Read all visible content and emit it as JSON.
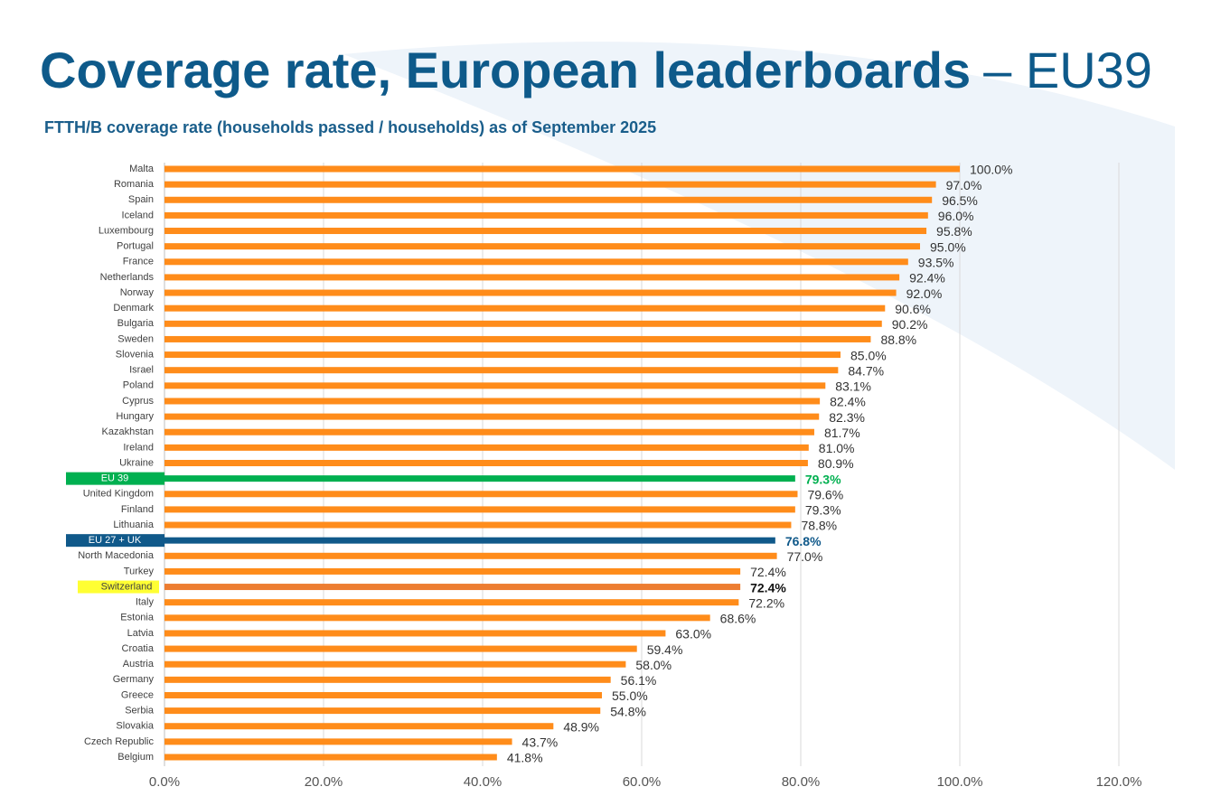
{
  "chart_data": {
    "type": "hbar",
    "title": "Coverage rate, European leaderboards",
    "title_suffix": "– EU39",
    "subtitle": "FTTH/B coverage rate (households passed / households) as of September 2025",
    "categories": [
      "Malta",
      "Romania",
      "Spain",
      "Iceland",
      "Luxembourg",
      "Portugal",
      "France",
      "Netherlands",
      "Norway",
      "Denmark",
      "Bulgaria",
      "Sweden",
      "Slovenia",
      "Israel",
      "Poland",
      "Cyprus",
      "Hungary",
      "Kazakhstan",
      "Ireland",
      "Ukraine",
      "EU 39",
      "United Kingdom",
      "Finland",
      "Lithuania",
      "EU 27 + UK",
      "North Macedonia",
      "Turkey",
      "Switzerland",
      "Italy",
      "Estonia",
      "Latvia",
      "Croatia",
      "Austria",
      "Germany",
      "Greece",
      "Serbia",
      "Slovakia",
      "Czech Republic",
      "Belgium"
    ],
    "values": [
      100.0,
      97.0,
      96.5,
      96.0,
      95.8,
      95.0,
      93.5,
      92.4,
      92.0,
      90.6,
      90.2,
      88.8,
      85.0,
      84.7,
      83.1,
      82.4,
      82.3,
      81.7,
      81.0,
      80.9,
      79.3,
      79.6,
      79.3,
      78.8,
      76.8,
      77.0,
      72.4,
      72.4,
      72.2,
      68.6,
      63.0,
      59.4,
      58.0,
      56.1,
      55.0,
      54.8,
      48.9,
      43.7,
      41.8
    ],
    "value_labels": [
      "100.0%",
      "97.0%",
      "96.5%",
      "96.0%",
      "95.8%",
      "95.0%",
      "93.5%",
      "92.4%",
      "92.0%",
      "90.6%",
      "90.2%",
      "88.8%",
      "85.0%",
      "84.7%",
      "83.1%",
      "82.4%",
      "82.3%",
      "81.7%",
      "81.0%",
      "80.9%",
      "79.3%",
      "79.6%",
      "79.3%",
      "78.8%",
      "76.8%",
      "77.0%",
      "72.4%",
      "72.4%",
      "72.2%",
      "68.6%",
      "63.0%",
      "59.4%",
      "58.0%",
      "56.1%",
      "55.0%",
      "54.8%",
      "48.9%",
      "43.7%",
      "41.8%"
    ],
    "colors": [
      "#ff8c1a",
      "#ff8c1a",
      "#ff8c1a",
      "#ff8c1a",
      "#ff8c1a",
      "#ff8c1a",
      "#ff8c1a",
      "#ff8c1a",
      "#ff8c1a",
      "#ff8c1a",
      "#ff8c1a",
      "#ff8c1a",
      "#ff8c1a",
      "#ff8c1a",
      "#ff8c1a",
      "#ff8c1a",
      "#ff8c1a",
      "#ff8c1a",
      "#ff8c1a",
      "#ff8c1a",
      "#00b050",
      "#ff8c1a",
      "#ff8c1a",
      "#ff8c1a",
      "#10598a",
      "#ff8c1a",
      "#ff8c1a",
      "#ed7d31",
      "#ff8c1a",
      "#ff8c1a",
      "#ff8c1a",
      "#ff8c1a",
      "#ff8c1a",
      "#ff8c1a",
      "#ff8c1a",
      "#ff8c1a",
      "#ff8c1a",
      "#ff8c1a",
      "#ff8c1a"
    ],
    "label_backgrounds": [
      null,
      null,
      null,
      null,
      null,
      null,
      null,
      null,
      null,
      null,
      null,
      null,
      null,
      null,
      null,
      null,
      null,
      null,
      null,
      null,
      "#00b050",
      null,
      null,
      null,
      "#10598a",
      null,
      null,
      "#ffff33",
      null,
      null,
      null,
      null,
      null,
      null,
      null,
      null,
      null,
      null,
      null
    ],
    "xlim": [
      0,
      120
    ],
    "xticks": [
      {
        "value": 0,
        "label": "0.0%"
      },
      {
        "value": 20,
        "label": "20.0%"
      },
      {
        "value": 40,
        "label": "40.0%"
      },
      {
        "value": 60,
        "label": "60.0%"
      },
      {
        "value": 80,
        "label": "80.0%"
      },
      {
        "value": 100,
        "label": "100.0%"
      },
      {
        "value": 120,
        "label": "120.0%"
      }
    ],
    "grid": true
  }
}
